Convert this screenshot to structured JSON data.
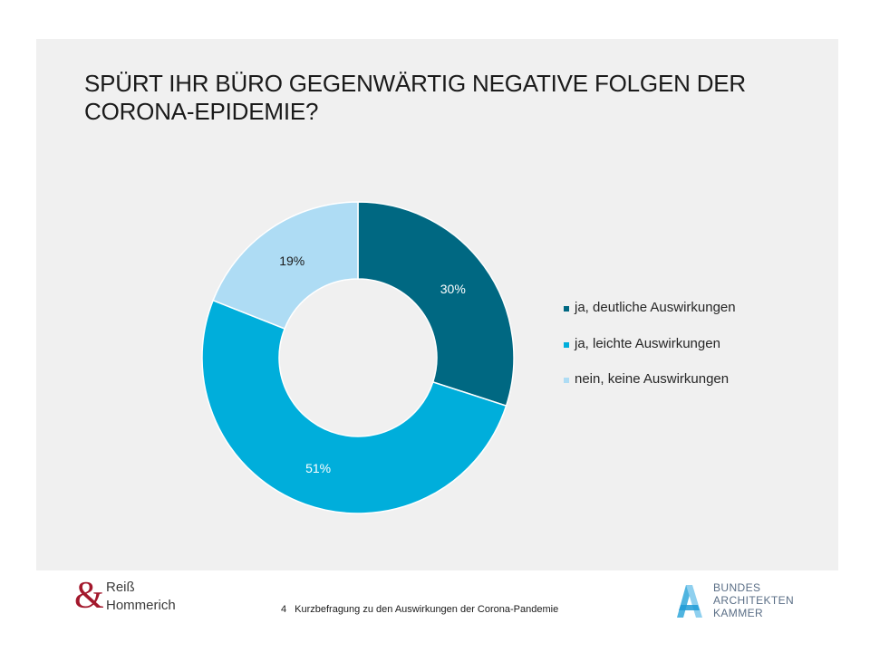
{
  "title": {
    "line1": "SPÜRT IHR BÜRO GEGENWÄRTIG NEGATIVE FOLGEN DER",
    "line2": "CORONA-EPIDEMIE?"
  },
  "chart_data": {
    "type": "pie",
    "variant": "donut",
    "categories": [
      "ja, deutliche Auswirkungen",
      "ja, leichte Auswirkungen",
      "nein, keine Auswirkungen"
    ],
    "values": [
      30,
      51,
      19
    ],
    "data_labels": [
      "30%",
      "51%",
      "19%"
    ],
    "colors": [
      "#006882",
      "#00aedb",
      "#aedcf4"
    ],
    "label_colors": [
      "#ffffff",
      "#ffffff",
      "#1a1a1a"
    ],
    "legend_position": "right",
    "start_angle": "12 o'clock, clockwise"
  },
  "legend": [
    {
      "label": "ja, deutliche Auswirkungen",
      "color": "#006882"
    },
    {
      "label": "ja, leichte Auswirkungen",
      "color": "#00aedb"
    },
    {
      "label": "nein, keine Auswirkungen",
      "color": "#aedcf4"
    }
  ],
  "footer": {
    "logo_left": {
      "symbol": "&",
      "line1": "Reiß",
      "line2": "Hommerich",
      "color": "#a3182c"
    },
    "page_number": "4",
    "caption": "Kurzbefragung zu den Auswirkungen der Corona-Pandemie",
    "logo_right": {
      "line1": "BUNDES",
      "line2": "ARCHITEKTEN",
      "line3": "KAMMER",
      "icon": "triangle-a-icon"
    }
  }
}
